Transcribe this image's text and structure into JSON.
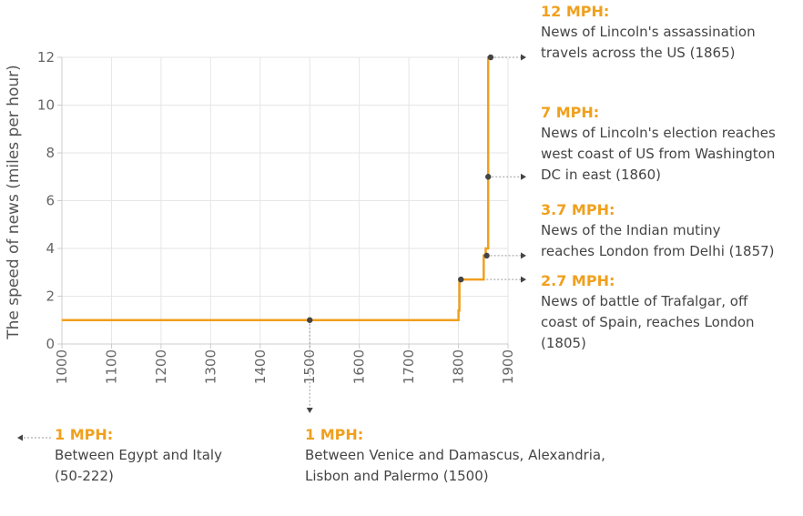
{
  "colors": {
    "line": "#f0a01e",
    "point": "#444444",
    "grid": "#e6e6e6",
    "axis": "#cccccc",
    "leader": "#999999",
    "label": "#f0a01e",
    "text": "#444444"
  },
  "chart_data": {
    "type": "line",
    "title": "",
    "ylabel": "The speed of news (miles per hour)",
    "xlabel": "",
    "xlim": [
      1000,
      1900
    ],
    "ylim": [
      0,
      12
    ],
    "xticks": [
      "1000",
      "1100",
      "1200",
      "1300",
      "1400",
      "1500",
      "1600",
      "1700",
      "1800",
      "1900"
    ],
    "yticks": [
      "0",
      "2",
      "4",
      "6",
      "8",
      "10",
      "12"
    ],
    "grid": true,
    "series": [
      {
        "x": [
          1000,
          1800,
          1800,
          1802,
          1802,
          1805,
          1805,
          1851,
          1851,
          1855,
          1855,
          1860,
          1860,
          1865
        ],
        "y": [
          1,
          1,
          1.4,
          1.4,
          2.7,
          2.7,
          2.7,
          2.7,
          3.7,
          3.7,
          4,
          4,
          12,
          12
        ]
      }
    ],
    "points": [
      {
        "x": 1500,
        "y": 1
      },
      {
        "x": 1805,
        "y": 2.7
      },
      {
        "x": 1857,
        "y": 3.7
      },
      {
        "x": 1860,
        "y": 7
      },
      {
        "x": 1865,
        "y": 12
      }
    ],
    "annotations": [
      {
        "heading": "12 MPH:",
        "lines": [
          "News of Lincoln's assassination",
          "travels across the US (1865)"
        ]
      },
      {
        "heading": "7 MPH:",
        "lines": [
          "News of Lincoln's election reaches",
          "west coast of US from Washington",
          "DC in east (1860)"
        ]
      },
      {
        "heading": "3.7 MPH:",
        "lines": [
          "News of the Indian mutiny",
          "reaches London from Delhi (1857)"
        ]
      },
      {
        "heading": "2.7 MPH:",
        "lines": [
          "News of battle of Trafalgar, off",
          "coast of Spain, reaches London",
          "(1805)"
        ]
      },
      {
        "heading": "1 MPH:",
        "lines": [
          "Between Egypt and Italy",
          "(50-222)"
        ]
      },
      {
        "heading": "1 MPH:",
        "lines": [
          "Between Venice and Damascus, Alexandria,",
          "Lisbon and Palermo (1500)"
        ]
      }
    ]
  }
}
